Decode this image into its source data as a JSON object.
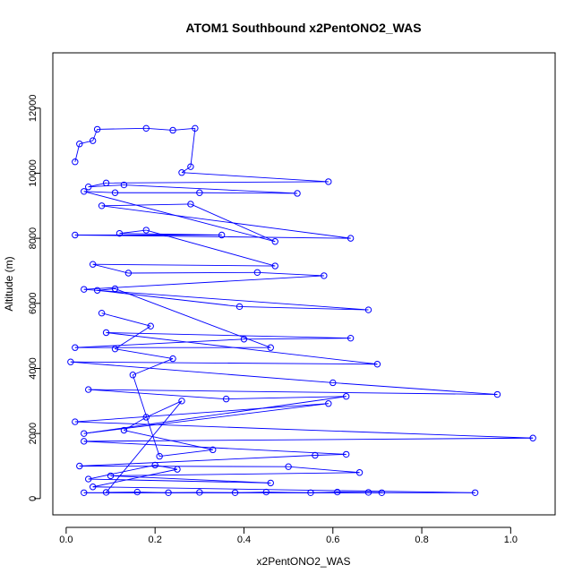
{
  "chart_data": {
    "type": "scatter",
    "mode": "lines+markers",
    "title": "ATOM1 Southbound x2PentONO2_WAS",
    "xlabel": "x2PentONO2_WAS",
    "ylabel": "Altitude (m)",
    "xlim": [
      -0.03,
      1.1
    ],
    "ylim": [
      -500,
      13700
    ],
    "xticks": [
      0.0,
      0.2,
      0.4,
      0.6,
      0.8,
      1.0
    ],
    "xtick_labels": [
      "0.0",
      "0.2",
      "0.4",
      "0.6",
      "0.8",
      "1.0"
    ],
    "yticks": [
      0,
      2000,
      4000,
      6000,
      8000,
      10000,
      12000
    ],
    "ytick_labels": [
      "0",
      "2000",
      "4000",
      "6000",
      "8000",
      "10000",
      "12000"
    ],
    "grid": false,
    "series": [
      {
        "color": "#0000ff",
        "marker": "open-circle",
        "points": [
          [
            0.02,
            10350
          ],
          [
            0.03,
            10900
          ],
          [
            0.06,
            11000
          ],
          [
            0.07,
            11350
          ],
          [
            0.18,
            11380
          ],
          [
            0.24,
            11320
          ],
          [
            0.29,
            11380
          ],
          [
            0.28,
            10200
          ],
          [
            0.26,
            10020
          ],
          [
            0.59,
            9740
          ],
          [
            0.09,
            9700
          ],
          [
            0.05,
            9580
          ],
          [
            0.13,
            9640
          ],
          [
            0.52,
            9380
          ],
          [
            0.3,
            9400
          ],
          [
            0.11,
            9400
          ],
          [
            0.04,
            9440
          ],
          [
            0.47,
            7900
          ],
          [
            0.28,
            9050
          ],
          [
            0.08,
            9000
          ],
          [
            0.64,
            8000
          ],
          [
            0.02,
            8100
          ],
          [
            0.35,
            8100
          ],
          [
            0.12,
            8150
          ],
          [
            0.18,
            8250
          ],
          [
            0.47,
            7150
          ],
          [
            0.06,
            7200
          ],
          [
            0.14,
            6930
          ],
          [
            0.43,
            6950
          ],
          [
            0.58,
            6850
          ],
          [
            0.04,
            6430
          ],
          [
            0.68,
            5800
          ],
          [
            0.39,
            5900
          ],
          [
            0.07,
            6400
          ],
          [
            0.11,
            6450
          ],
          [
            0.46,
            4640
          ],
          [
            0.02,
            4640
          ],
          [
            0.4,
            4900
          ],
          [
            0.64,
            4930
          ],
          [
            0.09,
            5100
          ],
          [
            0.7,
            4130
          ],
          [
            0.01,
            4200
          ],
          [
            0.6,
            3560
          ],
          [
            0.97,
            3200
          ],
          [
            0.05,
            3350
          ],
          [
            0.36,
            3060
          ],
          [
            0.63,
            3140
          ],
          [
            0.04,
            2000
          ],
          [
            0.59,
            2920
          ],
          [
            0.02,
            2360
          ],
          [
            1.05,
            1860
          ],
          [
            0.04,
            1760
          ],
          [
            0.63,
            1360
          ],
          [
            0.56,
            1330
          ],
          [
            0.03,
            1000
          ],
          [
            0.5,
            980
          ],
          [
            0.66,
            800
          ],
          [
            0.1,
            700
          ],
          [
            0.46,
            480
          ],
          [
            0.05,
            600
          ],
          [
            0.2,
            1030
          ],
          [
            0.25,
            900
          ],
          [
            0.06,
            360
          ],
          [
            0.92,
            180
          ],
          [
            0.04,
            180
          ],
          [
            0.71,
            180
          ],
          [
            0.68,
            190
          ],
          [
            0.61,
            200
          ],
          [
            0.55,
            180
          ],
          [
            0.45,
            200
          ],
          [
            0.38,
            180
          ],
          [
            0.3,
            190
          ],
          [
            0.23,
            180
          ],
          [
            0.16,
            200
          ],
          [
            0.09,
            190
          ],
          [
            0.26,
            3000
          ],
          [
            0.18,
            2500
          ],
          [
            0.13,
            2100
          ],
          [
            0.33,
            1500
          ],
          [
            0.21,
            1300
          ],
          [
            0.15,
            3800
          ],
          [
            0.24,
            4300
          ],
          [
            0.11,
            4600
          ],
          [
            0.19,
            5300
          ],
          [
            0.08,
            5700
          ]
        ]
      }
    ]
  }
}
